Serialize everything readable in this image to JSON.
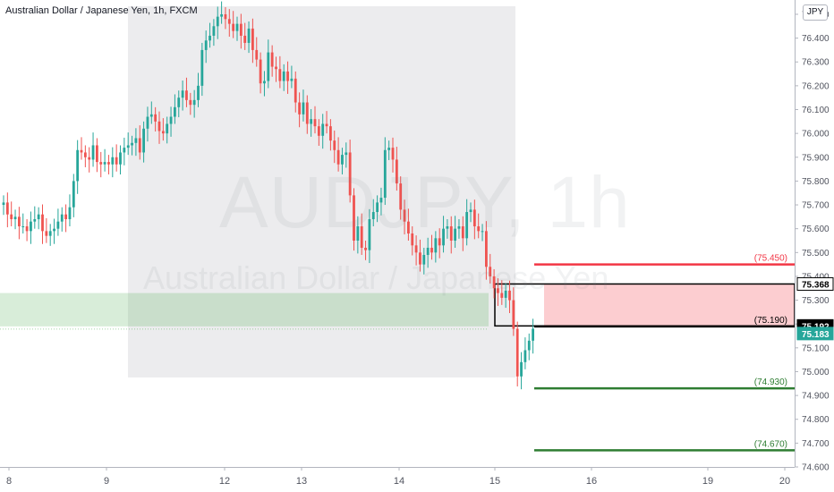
{
  "header": {
    "title": "Australian Dollar / Japanese Yen, 1h, FXCM",
    "currency": "JPY"
  },
  "watermark": {
    "symbol": "AUDJPY, 1h",
    "name": "Australian Dollar / Japanese Yen"
  },
  "chart_data": {
    "type": "candlestick",
    "symbol": "AUDJPY",
    "interval": "1h",
    "y_axis": {
      "ylim": [
        74.6,
        76.56
      ],
      "ticks": [
        "74.600",
        "74.700",
        "74.800",
        "74.900",
        "75.000",
        "75.100",
        "75.200",
        "75.300",
        "75.400",
        "75.500",
        "75.600",
        "75.700",
        "75.800",
        "75.900",
        "76.000",
        "76.100",
        "76.200",
        "76.300",
        "76.400",
        "76.500"
      ]
    },
    "x_axis": {
      "tick_labels": [
        "8",
        "9",
        "12",
        "13",
        "14",
        "15",
        "16",
        "19",
        "20"
      ],
      "tick_dates": [
        8,
        9,
        12,
        13,
        14,
        15,
        16,
        19,
        20
      ]
    },
    "candles": {
      "open": [
        75.7,
        75.71,
        75.66,
        75.64,
        75.65,
        75.61,
        75.61,
        75.59,
        75.63,
        75.64,
        75.66,
        75.59,
        75.57,
        75.59,
        75.6,
        75.63,
        75.66,
        75.64,
        75.69,
        75.8,
        75.93,
        75.92,
        75.9,
        75.89,
        75.95,
        75.88,
        75.87,
        75.88,
        75.87,
        75.9,
        75.87,
        75.92,
        75.94,
        75.95,
        75.96,
        75.98,
        75.92,
        76.02,
        76.07,
        76.08,
        76.05,
        76.01,
        76.0,
        76.04,
        76.07,
        76.11,
        76.15,
        76.18,
        76.14,
        76.12,
        76.14,
        76.2,
        76.35,
        76.39,
        76.41,
        76.45,
        76.49,
        76.5,
        76.48,
        76.46,
        76.43,
        76.46,
        76.41,
        76.38,
        76.44,
        76.35,
        76.31,
        76.21,
        76.22,
        76.34,
        76.28,
        76.27,
        76.22,
        76.26,
        76.22,
        76.23,
        76.13,
        76.08,
        76.13,
        76.04,
        76.06,
        76.03,
        75.99,
        76.04,
        76.03,
        75.97,
        75.93,
        75.87,
        75.91,
        75.92,
        75.74,
        75.55,
        75.61,
        75.52,
        75.51,
        75.64,
        75.67,
        75.71,
        75.73,
        75.93,
        75.94,
        75.89,
        75.79,
        75.68,
        75.63,
        75.58,
        75.53,
        75.5,
        75.45,
        75.49,
        75.52,
        75.5,
        75.56,
        75.53,
        75.6,
        75.61,
        75.55,
        75.6,
        75.61,
        75.56,
        75.67,
        75.68,
        75.61,
        75.59,
        75.59,
        75.44,
        75.4,
        75.35,
        75.33,
        75.31,
        75.34,
        75.3,
        75.18,
        74.98,
        75.04,
        75.09,
        75.13
      ],
      "close": [
        75.71,
        75.66,
        75.64,
        75.65,
        75.61,
        75.61,
        75.59,
        75.63,
        75.64,
        75.66,
        75.59,
        75.57,
        75.59,
        75.6,
        75.63,
        75.66,
        75.64,
        75.69,
        75.8,
        75.93,
        75.92,
        75.9,
        75.89,
        75.95,
        75.88,
        75.87,
        75.88,
        75.87,
        75.9,
        75.87,
        75.92,
        75.94,
        75.95,
        75.96,
        75.98,
        75.92,
        76.02,
        76.07,
        76.08,
        76.05,
        76.01,
        76.0,
        76.04,
        76.07,
        76.11,
        76.15,
        76.18,
        76.14,
        76.12,
        76.14,
        76.2,
        76.35,
        76.39,
        76.41,
        76.45,
        76.49,
        76.5,
        76.48,
        76.46,
        76.43,
        76.46,
        76.41,
        76.38,
        76.44,
        76.35,
        76.31,
        76.21,
        76.22,
        76.34,
        76.28,
        76.27,
        76.22,
        76.26,
        76.22,
        76.23,
        76.13,
        76.08,
        76.13,
        76.04,
        76.06,
        76.03,
        75.99,
        76.04,
        76.03,
        75.97,
        75.93,
        75.87,
        75.91,
        75.92,
        75.74,
        75.55,
        75.61,
        75.52,
        75.51,
        75.64,
        75.67,
        75.71,
        75.73,
        75.93,
        75.94,
        75.89,
        75.79,
        75.68,
        75.63,
        75.58,
        75.53,
        75.5,
        75.45,
        75.49,
        75.52,
        75.5,
        75.56,
        75.53,
        75.6,
        75.61,
        75.55,
        75.6,
        75.61,
        75.56,
        75.67,
        75.68,
        75.61,
        75.59,
        75.59,
        75.44,
        75.4,
        75.35,
        75.33,
        75.31,
        75.34,
        75.3,
        75.18,
        74.98,
        75.04,
        75.09,
        75.13,
        75.18
      ]
    },
    "overlays": {
      "zone_time_span": {
        "color": "#787b86"
      },
      "support_zone": {
        "from": 75.19,
        "to": 75.33,
        "color": "#4caf50"
      },
      "short_position": {
        "stop_price": 75.368,
        "entry_price": 75.192,
        "risk_color": "#f23645"
      },
      "levels": [
        {
          "price": 75.45,
          "label": "(75.450)",
          "color": "#f23645"
        },
        {
          "price": 75.19,
          "label": "(75.190)",
          "color": "#000000"
        },
        {
          "price": 74.93,
          "label": "(74.930)",
          "color": "#2e7d32"
        },
        {
          "price": 74.67,
          "label": "(74.670)",
          "color": "#2e7d32"
        }
      ]
    },
    "price_tags": [
      {
        "label": "75.368",
        "price": 75.368,
        "bg": "#ffffff",
        "fg": "#000000",
        "border": "#000000"
      },
      {
        "label": "75.192",
        "price": 75.192,
        "bg": "#000000",
        "fg": "#ffffff",
        "border": "#000000"
      },
      {
        "label": "75.183",
        "price": 75.16,
        "bg": "#26a69a",
        "fg": "#ffffff",
        "border": "#26a69a"
      }
    ],
    "colors": {
      "up": "#26a69a",
      "down": "#ef5350"
    }
  }
}
